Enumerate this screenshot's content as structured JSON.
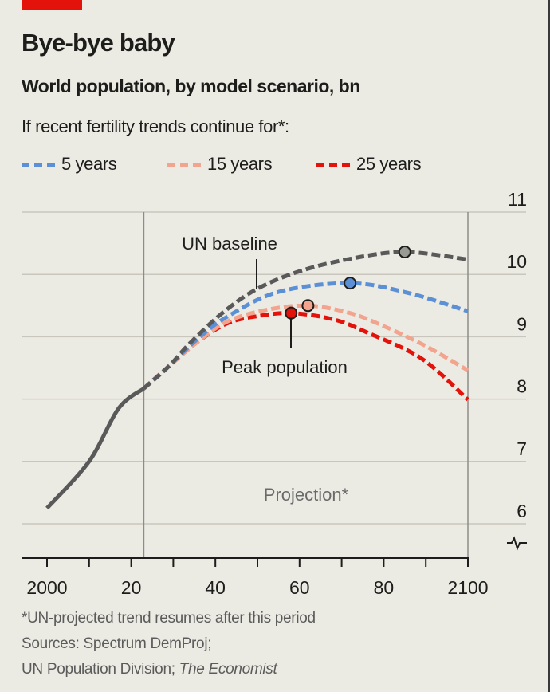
{
  "header": {
    "title": "Bye-bye baby",
    "subtitle": "World population, by model scenario, bn",
    "intro": "If recent fertility trends continue for*:"
  },
  "legend": [
    {
      "label": "5 years",
      "color": "#5b8fd6"
    },
    {
      "label": "15 years",
      "color": "#f2a48e"
    },
    {
      "label": "25 years",
      "color": "#e3120b"
    }
  ],
  "chart_data": {
    "type": "line",
    "xlim": [
      2000,
      2100
    ],
    "ylim": [
      5.5,
      11
    ],
    "x_ticks": [
      2000,
      2020,
      2040,
      2060,
      2080,
      2100
    ],
    "x_tick_labels": [
      "2000",
      "20",
      "40",
      "60",
      "80",
      "2100"
    ],
    "y_ticks": [
      6,
      7,
      8,
      9,
      10,
      11
    ],
    "y_tick_labels": [
      "6",
      "7",
      "8",
      "9",
      "10",
      "11"
    ],
    "y_axis_side": "right",
    "y_axis_break": true,
    "grid": true,
    "projection_start": 2023,
    "projection_label": "Projection*",
    "series": [
      {
        "name": "historical",
        "color": "#595959",
        "style": "solid",
        "x": [
          2000,
          2010,
          2017,
          2023
        ],
        "y": [
          6.25,
          7.0,
          7.85,
          8.17
        ]
      },
      {
        "name": "UN baseline",
        "color": "#595959",
        "style": "dashed",
        "x": [
          2023,
          2029,
          2034,
          2042,
          2050,
          2060,
          2072,
          2085,
          2100
        ],
        "y": [
          8.17,
          8.53,
          8.9,
          9.4,
          9.77,
          10.05,
          10.25,
          10.36,
          10.24
        ],
        "peak": {
          "x": 2085,
          "y": 10.36
        }
      },
      {
        "name": "5 years",
        "color": "#5b8fd6",
        "style": "dashed",
        "x": [
          2023,
          2029,
          2036,
          2043,
          2055,
          2072,
          2086,
          2100
        ],
        "y": [
          8.17,
          8.53,
          8.98,
          9.33,
          9.72,
          9.86,
          9.7,
          9.41
        ],
        "peak": {
          "x": 2072,
          "y": 9.86
        }
      },
      {
        "name": "15 years",
        "color": "#f2a48e",
        "style": "dashed",
        "x": [
          2023,
          2029,
          2036,
          2043,
          2052,
          2062,
          2072,
          2080,
          2090,
          2100
        ],
        "y": [
          8.17,
          8.53,
          8.93,
          9.25,
          9.43,
          9.5,
          9.38,
          9.17,
          8.85,
          8.46
        ],
        "peak": {
          "x": 2062,
          "y": 9.5
        }
      },
      {
        "name": "25 years",
        "color": "#e3120b",
        "style": "dashed",
        "x": [
          2023,
          2029,
          2036,
          2043,
          2050,
          2058,
          2068,
          2076,
          2089,
          2100
        ],
        "y": [
          8.17,
          8.53,
          8.93,
          9.22,
          9.33,
          9.38,
          9.28,
          9.07,
          8.65,
          7.99
        ],
        "peak": {
          "x": 2058,
          "y": 9.38
        }
      }
    ],
    "annotations": [
      {
        "text": "UN baseline",
        "x": 2050,
        "y": 10.6
      },
      {
        "text": "Peak population",
        "x": 2058,
        "y": 8.55
      }
    ]
  },
  "footer": {
    "note": "*UN-projected trend resumes after this period",
    "sources_line1": "Sources: Spectrum DemProj;",
    "sources_line2_plain": "UN Population Division; ",
    "sources_line2_italic": "The Economist"
  }
}
